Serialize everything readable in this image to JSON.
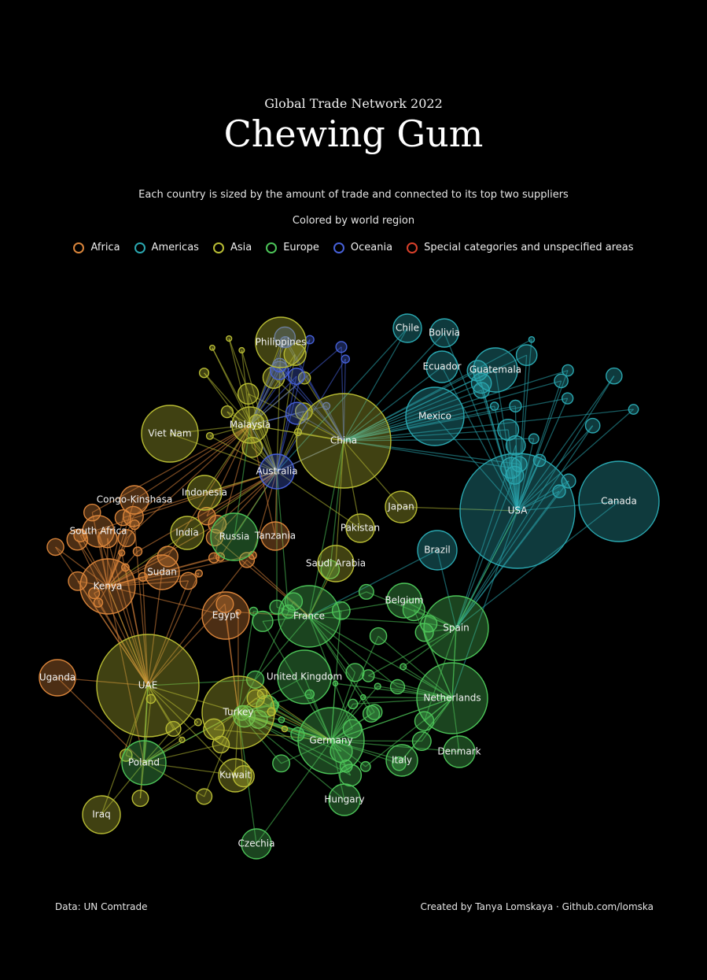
{
  "header": {
    "supertitle": "Global Trade Network 2022",
    "title": "Chewing Gum",
    "subtitle": "Each country is sized by the amount of trade and connected to its top two suppliers",
    "subtitle2": "Colored by world region"
  },
  "legend": [
    {
      "label": "Africa",
      "color": "#d9843a"
    },
    {
      "label": "Americas",
      "color": "#2aa7b0"
    },
    {
      "label": "Asia",
      "color": "#b7bb33"
    },
    {
      "label": "Europe",
      "color": "#4cc458"
    },
    {
      "label": "Oceania",
      "color": "#4660d8"
    },
    {
      "label": "Special categories and unspecified areas",
      "color": "#d9402a"
    }
  ],
  "chart_data": {
    "type": "network",
    "nodes": [
      {
        "label": "USA",
        "region": "Americas"
      },
      {
        "label": "Canada",
        "region": "Americas"
      },
      {
        "label": "Mexico",
        "region": "Americas"
      },
      {
        "label": "Brazil",
        "region": "Americas"
      },
      {
        "label": "Chile",
        "region": "Americas"
      },
      {
        "label": "Bolivia",
        "region": "Americas"
      },
      {
        "label": "Ecuador",
        "region": "Americas"
      },
      {
        "label": "Guatemala",
        "region": "Americas"
      },
      {
        "label": "China",
        "region": "Asia"
      },
      {
        "label": "UAE",
        "region": "Asia"
      },
      {
        "label": "Turkey",
        "region": "Asia"
      },
      {
        "label": "Philippines",
        "region": "Asia"
      },
      {
        "label": "Viet Nam",
        "region": "Asia"
      },
      {
        "label": "Malaysia",
        "region": "Asia"
      },
      {
        "label": "Indonesia",
        "region": "Asia"
      },
      {
        "label": "India",
        "region": "Asia"
      },
      {
        "label": "Japan",
        "region": "Asia"
      },
      {
        "label": "Pakistan",
        "region": "Asia"
      },
      {
        "label": "Saudi Arabia",
        "region": "Asia"
      },
      {
        "label": "Kuwait",
        "region": "Asia"
      },
      {
        "label": "Iraq",
        "region": "Asia"
      },
      {
        "label": "Australia",
        "region": "Oceania"
      },
      {
        "label": "Russia",
        "region": "Europe"
      },
      {
        "label": "France",
        "region": "Europe"
      },
      {
        "label": "United Kingdom",
        "region": "Europe"
      },
      {
        "label": "Germany",
        "region": "Europe"
      },
      {
        "label": "Netherlands",
        "region": "Europe"
      },
      {
        "label": "Spain",
        "region": "Europe"
      },
      {
        "label": "Belgium",
        "region": "Europe"
      },
      {
        "label": "Italy",
        "region": "Europe"
      },
      {
        "label": "Denmark",
        "region": "Europe"
      },
      {
        "label": "Poland",
        "region": "Europe"
      },
      {
        "label": "Hungary",
        "region": "Europe"
      },
      {
        "label": "Czechia",
        "region": "Europe"
      },
      {
        "label": "Kenya",
        "region": "Africa"
      },
      {
        "label": "Uganda",
        "region": "Africa"
      },
      {
        "label": "South Africa",
        "region": "Africa"
      },
      {
        "label": "Congo-Kinshasa",
        "region": "Africa"
      },
      {
        "label": "Sudan",
        "region": "Africa"
      },
      {
        "label": "Egypt",
        "region": "Africa"
      },
      {
        "label": "Tanzania",
        "region": "Africa"
      }
    ]
  },
  "footer": {
    "source": "Data: UN Comtrade",
    "credit": "Created by Tanya Lomskaya · Github.com/lomska"
  }
}
